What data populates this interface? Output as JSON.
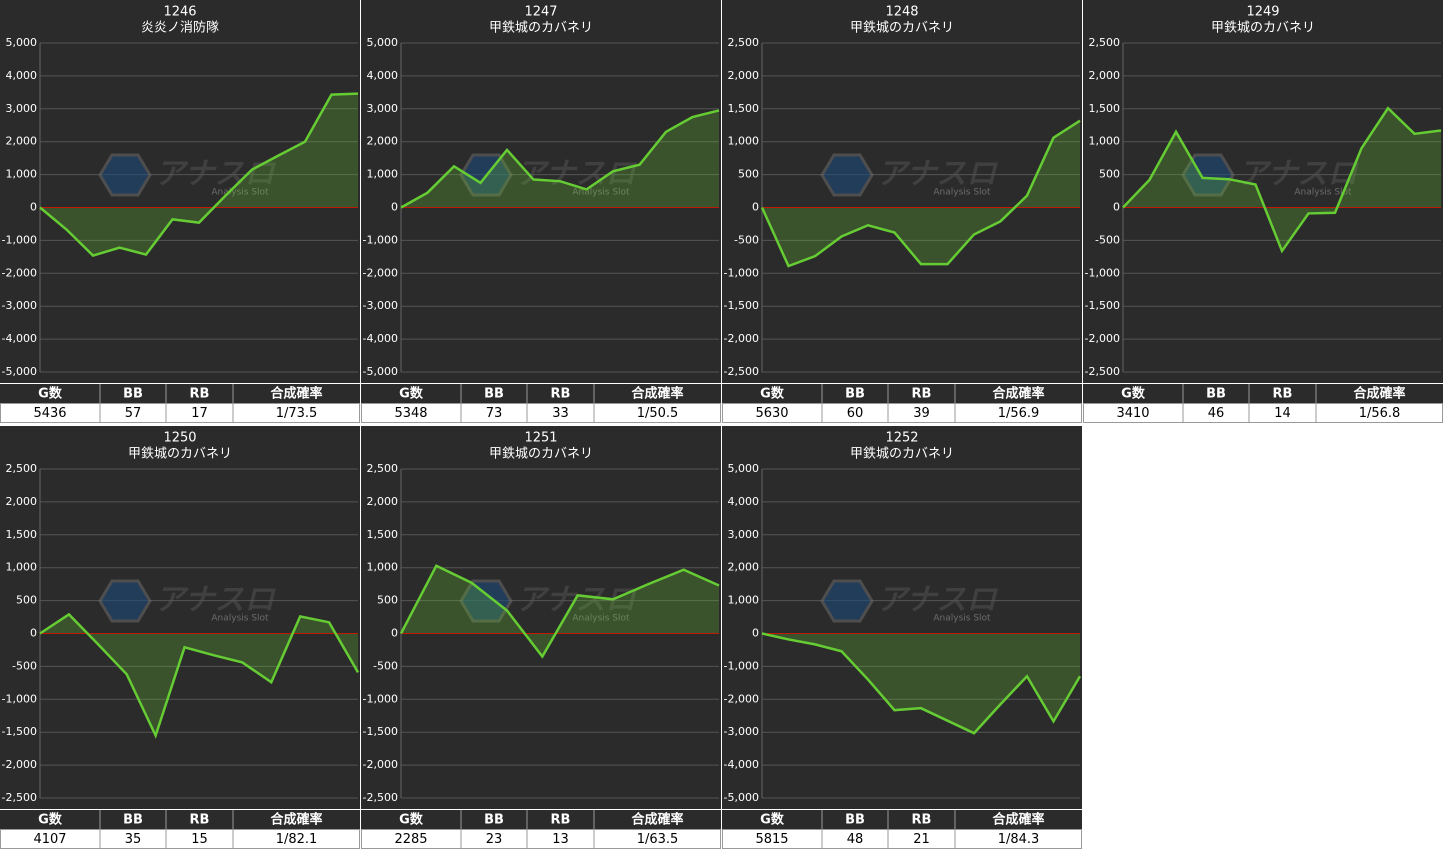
{
  "chart_data": [
    {
      "type": "line",
      "title": "1246",
      "subtitle": "炎炎ノ消防隊",
      "color": "#66cc33",
      "zero_line_color": "#cc0000",
      "grid": true,
      "values": [
        0,
        -670,
        -1460,
        -1220,
        -1430,
        -360,
        -460,
        360,
        1150,
        1580,
        2000,
        3430,
        3460
      ],
      "ylim": [
        -5000,
        5000
      ],
      "yticks": [
        {
          "value": -5000,
          "label": "-5,000"
        },
        {
          "value": -4000,
          "label": "-4,000"
        },
        {
          "value": -3000,
          "label": "-3,000"
        },
        {
          "value": -2000,
          "label": "-2,000"
        },
        {
          "value": -1000,
          "label": "-1,000"
        },
        0,
        {
          "value": 1000,
          "label": "1,000"
        },
        {
          "value": 2000,
          "label": "2,000"
        },
        {
          "value": 3000,
          "label": "3,000"
        },
        {
          "value": 4000,
          "label": "4,000"
        },
        {
          "value": 5000,
          "label": "5,000"
        }
      ]
    },
    {
      "type": "line",
      "title": "1247",
      "subtitle": "甲鉄城のカバネリ",
      "color": "#66cc33",
      "zero_line_color": "#cc0000",
      "grid": true,
      "values": [
        0,
        450,
        1250,
        750,
        1750,
        850,
        800,
        550,
        1100,
        1300,
        2300,
        2750,
        2950
      ],
      "ylim": [
        -5000,
        5000
      ],
      "yticks": [
        {
          "value": -5000,
          "label": "-5,000"
        },
        {
          "value": -4000,
          "label": "-4,000"
        },
        {
          "value": -3000,
          "label": "-3,000"
        },
        {
          "value": -2000,
          "label": "-2,000"
        },
        {
          "value": -1000,
          "label": "-1,000"
        },
        0,
        {
          "value": 1000,
          "label": "1,000"
        },
        {
          "value": 2000,
          "label": "2,000"
        },
        {
          "value": 3000,
          "label": "3,000"
        },
        {
          "value": 4000,
          "label": "4,000"
        },
        {
          "value": 5000,
          "label": "5,000"
        }
      ]
    },
    {
      "type": "line",
      "title": "1248",
      "subtitle": "甲鉄城のカバネリ",
      "color": "#66cc33",
      "zero_line_color": "#cc0000",
      "grid": true,
      "values": [
        0,
        -890,
        -740,
        -440,
        -270,
        -380,
        -860,
        -860,
        -410,
        -210,
        180,
        1060,
        1320
      ],
      "ylim": [
        -2500,
        2500
      ],
      "yticks": [
        {
          "value": -2500,
          "label": "-2,500"
        },
        {
          "value": -2000,
          "label": "-2,000"
        },
        {
          "value": -1500,
          "label": "-1,500"
        },
        {
          "value": -1000,
          "label": "-1,000"
        },
        -500,
        0,
        500,
        {
          "value": 1000,
          "label": "1,000"
        },
        {
          "value": 1500,
          "label": "1,500"
        },
        {
          "value": 2000,
          "label": "2,000"
        },
        {
          "value": 2500,
          "label": "2,500"
        }
      ]
    },
    {
      "type": "line",
      "title": "1249",
      "subtitle": "甲鉄城のカバネリ",
      "color": "#66cc33",
      "zero_line_color": "#cc0000",
      "grid": true,
      "values": [
        0,
        420,
        1150,
        450,
        430,
        350,
        -660,
        -90,
        -80,
        900,
        1510,
        1120,
        1170
      ],
      "ylim": [
        -2500,
        2500
      ],
      "yticks": [
        {
          "value": -2500,
          "label": "-2,500"
        },
        {
          "value": -2000,
          "label": "-2,000"
        },
        {
          "value": -1500,
          "label": "-1,500"
        },
        {
          "value": -1000,
          "label": "-1,000"
        },
        -500,
        0,
        500,
        {
          "value": 1000,
          "label": "1,000"
        },
        {
          "value": 1500,
          "label": "1,500"
        },
        {
          "value": 2000,
          "label": "2,000"
        },
        {
          "value": 2500,
          "label": "2,500"
        }
      ]
    },
    {
      "type": "line",
      "title": "1250",
      "subtitle": "甲鉄城のカバネリ",
      "color": "#66cc33",
      "zero_line_color": "#cc0000",
      "grid": true,
      "values": [
        0,
        290,
        -160,
        -620,
        -1550,
        -210,
        -330,
        -440,
        -740,
        260,
        170,
        -590
      ],
      "ylim": [
        -2500,
        2500
      ],
      "yticks": [
        {
          "value": -2500,
          "label": "-2,500"
        },
        {
          "value": -2000,
          "label": "-2,000"
        },
        {
          "value": -1500,
          "label": "-1,500"
        },
        {
          "value": -1000,
          "label": "-1,000"
        },
        -500,
        0,
        500,
        {
          "value": 1000,
          "label": "1,000"
        },
        {
          "value": 1500,
          "label": "1,500"
        },
        {
          "value": 2000,
          "label": "2,000"
        },
        {
          "value": 2500,
          "label": "2,500"
        }
      ]
    },
    {
      "type": "line",
      "title": "1251",
      "subtitle": "甲鉄城のカバネリ",
      "color": "#66cc33",
      "zero_line_color": "#cc0000",
      "grid": true,
      "values": [
        0,
        1030,
        770,
        350,
        -350,
        580,
        520,
        750,
        970,
        730
      ],
      "ylim": [
        -2500,
        2500
      ],
      "yticks": [
        {
          "value": -2500,
          "label": "-2,500"
        },
        {
          "value": -2000,
          "label": "-2,000"
        },
        {
          "value": -1500,
          "label": "-1,500"
        },
        {
          "value": -1000,
          "label": "-1,000"
        },
        -500,
        0,
        500,
        {
          "value": 1000,
          "label": "1,000"
        },
        {
          "value": 1500,
          "label": "1,500"
        },
        {
          "value": 2000,
          "label": "2,000"
        },
        {
          "value": 2500,
          "label": "2,500"
        }
      ]
    },
    {
      "type": "line",
      "title": "1252",
      "subtitle": "甲鉄城のカバネリ",
      "color": "#66cc33",
      "zero_line_color": "#cc0000",
      "grid": true,
      "values": [
        0,
        -180,
        -330,
        -540,
        -1400,
        -2330,
        -2270,
        -2650,
        -3030,
        -2150,
        -1300,
        -2670,
        -1300
      ],
      "ylim": [
        -5000,
        5000
      ],
      "yticks": [
        {
          "value": -5000,
          "label": "-5,000"
        },
        {
          "value": -4000,
          "label": "-4,000"
        },
        {
          "value": -3000,
          "label": "-3,000"
        },
        {
          "value": -2000,
          "label": "-2,000"
        },
        {
          "value": -1000,
          "label": "-1,000"
        },
        0,
        {
          "value": 1000,
          "label": "1,000"
        },
        {
          "value": 2000,
          "label": "2,000"
        },
        {
          "value": 3000,
          "label": "3,000"
        },
        {
          "value": 4000,
          "label": "4,000"
        },
        {
          "value": 5000,
          "label": "5,000"
        }
      ]
    }
  ],
  "tables": [
    {
      "header": [
        "G数",
        "BB",
        "RB",
        "合成確率"
      ],
      "row": [
        "5436",
        "57",
        "17",
        "1/73.5"
      ]
    },
    {
      "header": [
        "G数",
        "BB",
        "RB",
        "合成確率"
      ],
      "row": [
        "5348",
        "73",
        "33",
        "1/50.5"
      ]
    },
    {
      "header": [
        "G数",
        "BB",
        "RB",
        "合成確率"
      ],
      "row": [
        "5630",
        "60",
        "39",
        "1/56.9"
      ]
    },
    {
      "header": [
        "G数",
        "BB",
        "RB",
        "合成確率"
      ],
      "row": [
        "3410",
        "46",
        "14",
        "1/56.8"
      ]
    },
    {
      "header": [
        "G数",
        "BB",
        "RB",
        "合成確率"
      ],
      "row": [
        "4107",
        "35",
        "15",
        "1/82.1"
      ]
    },
    {
      "header": [
        "G数",
        "BB",
        "RB",
        "合成確率"
      ],
      "row": [
        "2285",
        "23",
        "13",
        "1/63.5"
      ]
    },
    {
      "header": [
        "G数",
        "BB",
        "RB",
        "合成確率"
      ],
      "row": [
        "5815",
        "48",
        "21",
        "1/84.3"
      ]
    }
  ],
  "watermark": {
    "name": "アナスロ",
    "tagline": "Analysis Slot"
  }
}
